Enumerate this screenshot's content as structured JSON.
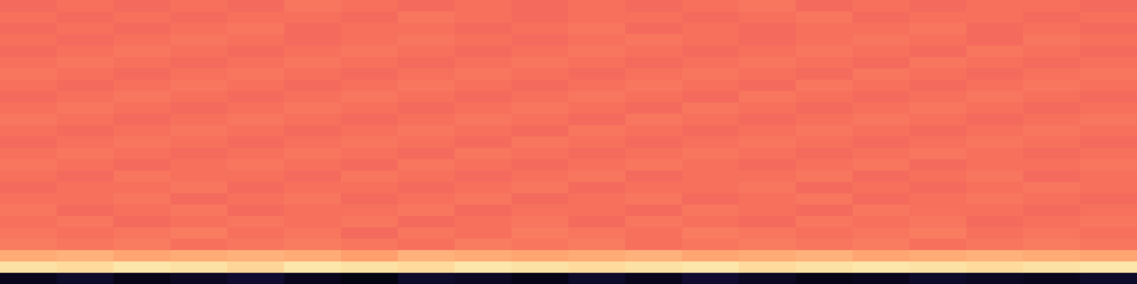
{
  "chart_data": {
    "type": "heatmap",
    "tick_labels": false,
    "grid": false,
    "color_range": [
      -80,
      0
    ],
    "z": [
      [
        -76,
        -74,
        -77,
        -75,
        -73,
        -76,
        -78,
        -74,
        -75,
        -77,
        -74,
        -76,
        -73,
        -75,
        -77,
        -76,
        -74,
        -75,
        -76,
        -74
      ],
      [
        -5,
        -6,
        -4,
        -5,
        -7,
        -4,
        -5,
        -6,
        -4,
        -5,
        -6,
        -5,
        -4,
        -6,
        -5,
        -4,
        -5,
        -6,
        -5,
        -4
      ],
      [
        -14,
        -13,
        -15,
        -14,
        -13,
        -14,
        -16,
        -13,
        -14,
        -15,
        -14,
        -13,
        -15,
        -14,
        -13,
        -15,
        -14,
        -13,
        -14,
        -15
      ],
      [
        -22,
        -23,
        -22,
        -24,
        -23,
        -22,
        -23,
        -24,
        -22,
        -23,
        -22,
        -24,
        -23,
        -22,
        -23,
        -22,
        -24,
        -23,
        -22,
        -23
      ],
      [
        -23,
        -24,
        -23,
        -22,
        -24,
        -23,
        -25,
        -23,
        -24,
        -22,
        -23,
        -24,
        -22,
        -23,
        -24,
        -23,
        -22,
        -24,
        -23,
        -24
      ],
      [
        -24,
        -23,
        -25,
        -24,
        -23,
        -24,
        -23,
        -25,
        -24,
        -23,
        -25,
        -23,
        -24,
        -25,
        -23,
        -24,
        -23,
        -25,
        -24,
        -23
      ],
      [
        -23,
        -25,
        -24,
        -23,
        -25,
        -24,
        -24,
        -23,
        -25,
        -24,
        -24,
        -25,
        -23,
        -24,
        -25,
        -23,
        -24,
        -24,
        -25,
        -24
      ],
      [
        -24,
        -24,
        -23,
        -25,
        -24,
        -23,
        -25,
        -24,
        -23,
        -25,
        -24,
        -23,
        -25,
        -24,
        -23,
        -25,
        -24,
        -23,
        -24,
        -25
      ],
      [
        -25,
        -24,
        -24,
        -23,
        -25,
        -24,
        -24,
        -25,
        -24,
        -23,
        -25,
        -24,
        -24,
        -23,
        -25,
        -24,
        -25,
        -24,
        -23,
        -24
      ],
      [
        -24,
        -25,
        -23,
        -24,
        -24,
        -25,
        -23,
        -24,
        -25,
        -24,
        -23,
        -25,
        -24,
        -24,
        -23,
        -25,
        -24,
        -23,
        -25,
        -24
      ],
      [
        -23,
        -24,
        -25,
        -24,
        -23,
        -24,
        -25,
        -23,
        -24,
        -25,
        -24,
        -23,
        -24,
        -25,
        -24,
        -23,
        -25,
        -24,
        -24,
        -23
      ],
      [
        -24,
        -23,
        -24,
        -25,
        -24,
        -23,
        -24,
        -25,
        -23,
        -24,
        -25,
        -24,
        -23,
        -24,
        -25,
        -24,
        -23,
        -24,
        -25,
        -24
      ],
      [
        -25,
        -24,
        -23,
        -24,
        -25,
        -24,
        -23,
        -24,
        -25,
        -23,
        -24,
        -25,
        -24,
        -23,
        -24,
        -25,
        -24,
        -23,
        -24,
        -25
      ],
      [
        -24,
        -25,
        -24,
        -23,
        -24,
        -25,
        -24,
        -23,
        -24,
        -25,
        -23,
        -24,
        -25,
        -24,
        -23,
        -24,
        -25,
        -24,
        -23,
        -24
      ],
      [
        -23,
        -24,
        -25,
        -24,
        -23,
        -24,
        -25,
        -24,
        -23,
        -24,
        -25,
        -23,
        -24,
        -25,
        -24,
        -23,
        -24,
        -25,
        -24,
        -23
      ],
      [
        -24,
        -23,
        -24,
        -25,
        -24,
        -23,
        -24,
        -25,
        -24,
        -23,
        -24,
        -25,
        -23,
        -24,
        -25,
        -24,
        -23,
        -24,
        -25,
        -24
      ],
      [
        -25,
        -24,
        -23,
        -24,
        -25,
        -24,
        -23,
        -24,
        -25,
        -24,
        -23,
        -24,
        -25,
        -23,
        -24,
        -25,
        -24,
        -23,
        -24,
        -25
      ],
      [
        -24,
        -25,
        -24,
        -23,
        -24,
        -25,
        -24,
        -23,
        -24,
        -25,
        -24,
        -23,
        -24,
        -25,
        -23,
        -24,
        -25,
        -24,
        -23,
        -24
      ],
      [
        -23,
        -24,
        -25,
        -24,
        -23,
        -24,
        -25,
        -24,
        -23,
        -24,
        -25,
        -24,
        -23,
        -24,
        -25,
        -23,
        -24,
        -25,
        -24,
        -23
      ],
      [
        -24,
        -23,
        -24,
        -25,
        -24,
        -23,
        -24,
        -25,
        -24,
        -23,
        -24,
        -25,
        -24,
        -23,
        -24,
        -25,
        -23,
        -24,
        -25,
        -24
      ],
      [
        -25,
        -24,
        -23,
        -24,
        -25,
        -24,
        -23,
        -24,
        -25,
        -24,
        -23,
        -24,
        -25,
        -24,
        -23,
        -24,
        -25,
        -23,
        -24,
        -25
      ],
      [
        -24,
        -25,
        -24,
        -23,
        -24,
        -25,
        -24,
        -23,
        -24,
        -25,
        -24,
        -23,
        -24,
        -25,
        -24,
        -23,
        -24,
        -25,
        -23,
        -24
      ],
      [
        -25,
        -24,
        -25,
        -24,
        -23,
        -25,
        -24,
        -24,
        -25,
        -24,
        -23,
        -25,
        -24,
        -25,
        -24,
        -24,
        -23,
        -25,
        -24,
        -25
      ],
      [
        -24,
        -25,
        -24,
        -25,
        -24,
        -24,
        -25,
        -23,
        -24,
        -25,
        -24,
        -24,
        -25,
        -24,
        -23,
        -25,
        -24,
        -24,
        -25,
        -24
      ],
      [
        -25,
        -24,
        -25,
        -24,
        -25,
        -23,
        -24,
        -25,
        -24,
        -25,
        -24,
        -25,
        -24,
        -23,
        -25,
        -24,
        -25,
        -24,
        -24,
        -25
      ]
    ]
  }
}
